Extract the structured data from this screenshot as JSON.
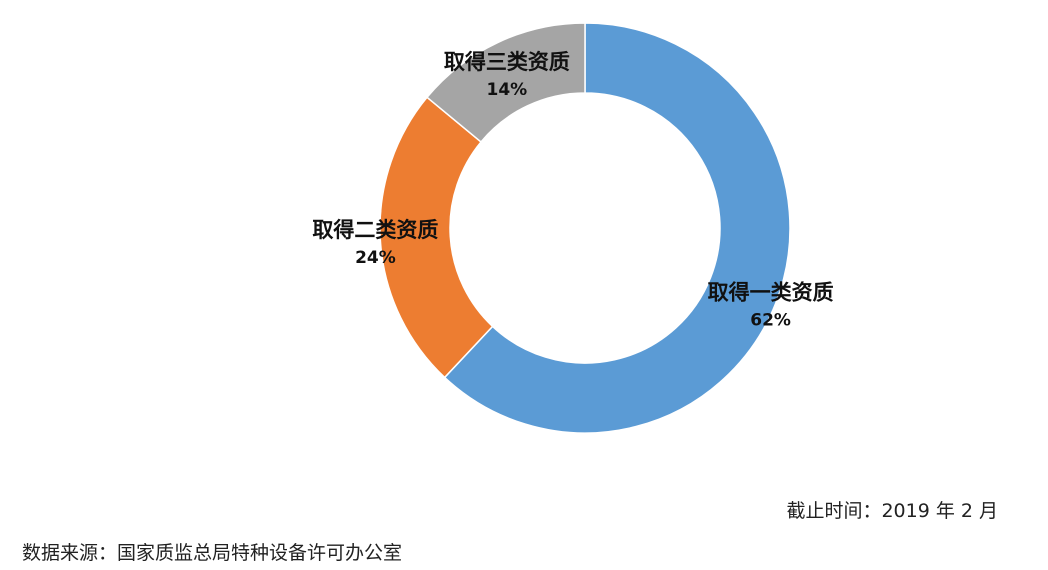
{
  "chart_data": {
    "type": "pie",
    "style": "donut",
    "categories": [
      "取得一类资质",
      "取得二类资质",
      "取得三类资质"
    ],
    "values": [
      62,
      24,
      14
    ],
    "value_labels": [
      "62%",
      "24%",
      "14%"
    ],
    "colors": [
      "#5B9BD5",
      "#ED7D31",
      "#A5A5A5"
    ]
  },
  "footer": {
    "as_of": "截止时间：2019 年 2 月",
    "source": "数据来源：国家质监总局特种设备许可办公室"
  }
}
